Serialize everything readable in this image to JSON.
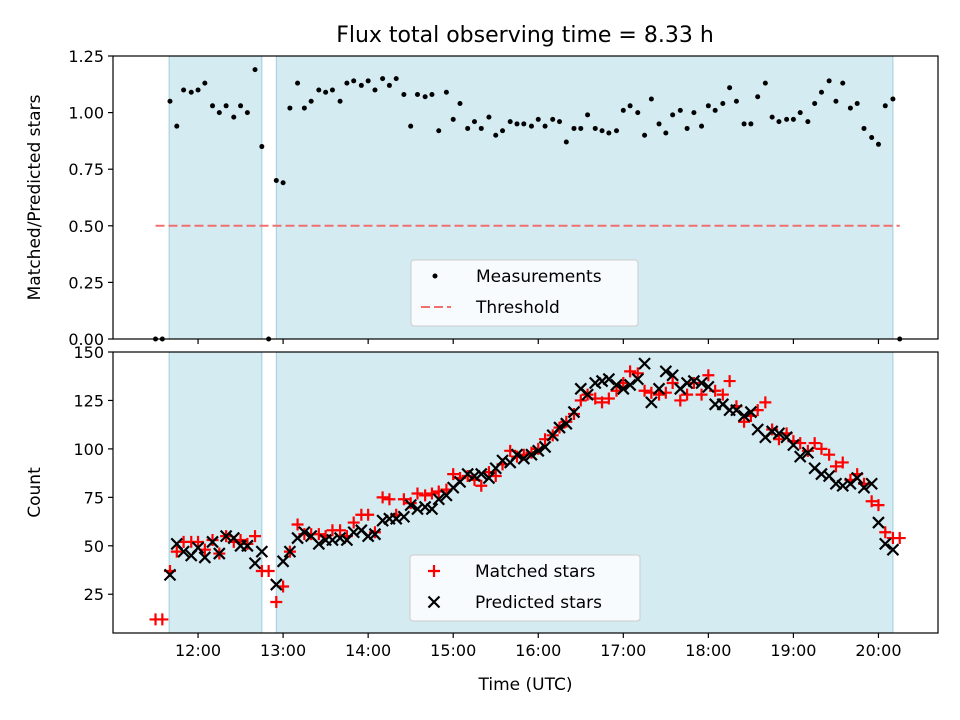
{
  "colors": {
    "observing_band": "#add8e6",
    "measurements": "#000000",
    "threshold": "#f07070",
    "matched": "#ff0000",
    "predicted": "#000000"
  },
  "chart_data": [
    {
      "type": "scatter",
      "title": "Flux total observing time = 8.33 h",
      "xlabel": "",
      "ylabel": "Matched/Predicted stars",
      "x_unit": "hours UTC",
      "xlim": [
        11.0,
        20.7
      ],
      "ylim": [
        0.0,
        1.25
      ],
      "x_ticks": [
        12,
        13,
        14,
        15,
        16,
        17,
        18,
        19,
        20
      ],
      "x_tick_labels": [],
      "y_ticks": [
        0.0,
        0.25,
        0.5,
        0.75,
        1.0,
        1.25
      ],
      "y_tick_labels": [
        "0.00",
        "0.25",
        "0.50",
        "0.75",
        "1.00",
        "1.25"
      ],
      "shaded_intervals": [
        [
          11.66,
          12.75
        ],
        [
          12.92,
          20.17
        ]
      ],
      "legend": {
        "position": "lower center",
        "entries": [
          "Measurements",
          "Threshold"
        ]
      },
      "threshold": {
        "name": "Threshold",
        "value": 0.5,
        "x_range": [
          11.5,
          20.25
        ]
      },
      "series": [
        {
          "name": "Measurements",
          "x": [
            11.5,
            11.58,
            11.67,
            11.75,
            11.83,
            11.92,
            12.0,
            12.08,
            12.17,
            12.25,
            12.33,
            12.42,
            12.5,
            12.58,
            12.67,
            12.75,
            12.83,
            12.92,
            13.0,
            13.08,
            13.17,
            13.25,
            13.33,
            13.42,
            13.5,
            13.58,
            13.67,
            13.75,
            13.83,
            13.92,
            14.0,
            14.08,
            14.17,
            14.25,
            14.33,
            14.42,
            14.5,
            14.58,
            14.67,
            14.75,
            14.83,
            14.92,
            15.0,
            15.08,
            15.17,
            15.25,
            15.33,
            15.42,
            15.5,
            15.58,
            15.67,
            15.75,
            15.83,
            15.92,
            16.0,
            16.08,
            16.17,
            16.25,
            16.33,
            16.42,
            16.5,
            16.58,
            16.67,
            16.75,
            16.83,
            16.92,
            17.0,
            17.08,
            17.17,
            17.25,
            17.33,
            17.42,
            17.5,
            17.58,
            17.67,
            17.75,
            17.83,
            17.92,
            18.0,
            18.08,
            18.17,
            18.25,
            18.33,
            18.42,
            18.5,
            18.58,
            18.67,
            18.75,
            18.83,
            18.92,
            19.0,
            19.08,
            19.17,
            19.25,
            19.33,
            19.42,
            19.5,
            19.58,
            19.67,
            19.75,
            19.83,
            19.92,
            20.0,
            20.08,
            20.17,
            20.25
          ],
          "values": [
            0.0,
            0.0,
            1.05,
            0.94,
            1.1,
            1.09,
            1.1,
            1.13,
            1.03,
            1.0,
            1.03,
            0.98,
            1.03,
            1.0,
            1.19,
            0.85,
            0.0,
            0.7,
            0.69,
            1.02,
            1.13,
            1.02,
            1.05,
            1.1,
            1.09,
            1.1,
            1.05,
            1.13,
            1.14,
            1.12,
            1.14,
            1.1,
            1.15,
            1.12,
            1.15,
            1.08,
            0.94,
            1.08,
            1.07,
            1.08,
            0.92,
            1.09,
            0.97,
            1.04,
            0.93,
            0.96,
            0.93,
            0.98,
            0.9,
            0.92,
            0.96,
            0.95,
            0.95,
            0.94,
            0.97,
            0.94,
            0.97,
            0.96,
            0.87,
            0.93,
            0.93,
            0.99,
            0.93,
            0.92,
            0.91,
            0.92,
            1.01,
            1.03,
            1.0,
            0.9,
            1.06,
            0.95,
            0.91,
            0.99,
            1.01,
            0.93,
            1.0,
            0.94,
            1.03,
            1.01,
            1.04,
            1.11,
            1.05,
            0.95,
            0.95,
            1.07,
            1.13,
            0.98,
            0.96,
            0.97,
            0.97,
            1.0,
            0.96,
            1.04,
            1.09,
            1.14,
            1.05,
            1.13,
            1.02,
            1.04,
            0.93,
            0.89,
            0.86,
            1.03,
            1.06,
            0.0
          ]
        }
      ]
    },
    {
      "type": "scatter",
      "title": "",
      "xlabel": "Time (UTC)",
      "ylabel": "Count",
      "x_unit": "hours UTC",
      "xlim": [
        11.0,
        20.7
      ],
      "ylim": [
        5,
        150
      ],
      "x_ticks": [
        12,
        13,
        14,
        15,
        16,
        17,
        18,
        19,
        20
      ],
      "x_tick_labels": [
        "12:00",
        "13:00",
        "14:00",
        "15:00",
        "16:00",
        "17:00",
        "18:00",
        "19:00",
        "20:00"
      ],
      "y_ticks": [
        25,
        50,
        75,
        100,
        125,
        150
      ],
      "y_tick_labels": [
        "25",
        "50",
        "75",
        "100",
        "125",
        "150"
      ],
      "shaded_intervals": [
        [
          11.66,
          12.75
        ],
        [
          12.92,
          20.17
        ]
      ],
      "legend": {
        "position": "lower center",
        "entries": [
          "Matched stars",
          "Predicted stars"
        ]
      },
      "series": [
        {
          "name": "Matched stars",
          "marker": "plus",
          "x": [
            11.5,
            11.58,
            11.67,
            11.75,
            11.83,
            11.92,
            12.0,
            12.08,
            12.17,
            12.25,
            12.33,
            12.42,
            12.5,
            12.58,
            12.67,
            12.75,
            12.83,
            12.92,
            13.0,
            13.08,
            13.17,
            13.25,
            13.33,
            13.42,
            13.5,
            13.58,
            13.67,
            13.75,
            13.83,
            13.92,
            14.0,
            14.08,
            14.17,
            14.25,
            14.33,
            14.42,
            14.5,
            14.58,
            14.67,
            14.75,
            14.83,
            14.92,
            15.0,
            15.08,
            15.17,
            15.25,
            15.33,
            15.42,
            15.5,
            15.58,
            15.67,
            15.75,
            15.83,
            15.92,
            16.0,
            16.08,
            16.17,
            16.25,
            16.33,
            16.42,
            16.5,
            16.58,
            16.67,
            16.75,
            16.83,
            16.92,
            17.0,
            17.08,
            17.17,
            17.25,
            17.33,
            17.42,
            17.5,
            17.58,
            17.67,
            17.75,
            17.83,
            17.92,
            18.0,
            18.08,
            18.17,
            18.25,
            18.33,
            18.42,
            18.5,
            18.58,
            18.67,
            18.75,
            18.83,
            18.92,
            19.0,
            19.08,
            19.17,
            19.25,
            19.33,
            19.42,
            19.5,
            19.58,
            19.67,
            19.75,
            19.83,
            19.92,
            20.0,
            20.08,
            20.17,
            20.25
          ],
          "values": [
            12,
            12,
            37,
            47,
            52,
            52,
            52,
            48,
            53,
            46,
            55,
            52,
            53,
            51,
            55,
            37,
            37,
            21,
            29,
            47,
            61,
            56,
            56,
            56,
            55,
            58,
            58,
            55,
            62,
            66,
            66,
            57,
            75,
            74,
            66,
            74,
            72,
            77,
            76,
            77,
            78,
            79,
            87,
            85,
            86,
            84,
            81,
            88,
            86,
            92,
            99,
            96,
            97,
            98,
            100,
            105,
            107,
            111,
            114,
            118,
            125,
            128,
            126,
            124,
            126,
            130,
            134,
            140,
            139,
            130,
            129,
            128,
            129,
            134,
            125,
            128,
            134,
            128,
            138,
            130,
            128,
            135,
            122,
            114,
            117,
            120,
            124,
            110,
            105,
            108,
            104,
            103,
            99,
            103,
            100,
            97,
            91,
            93,
            84,
            87,
            82,
            73,
            71,
            57,
            54,
            54
          ]
        },
        {
          "name": "Predicted stars",
          "marker": "x",
          "x": [
            11.67,
            11.75,
            11.83,
            11.92,
            12.0,
            12.08,
            12.17,
            12.25,
            12.33,
            12.42,
            12.5,
            12.58,
            12.67,
            12.75,
            12.92,
            13.0,
            13.08,
            13.17,
            13.25,
            13.33,
            13.42,
            13.5,
            13.58,
            13.67,
            13.75,
            13.83,
            13.92,
            14.0,
            14.08,
            14.17,
            14.25,
            14.33,
            14.42,
            14.5,
            14.58,
            14.67,
            14.75,
            14.83,
            14.92,
            15.0,
            15.08,
            15.17,
            15.25,
            15.33,
            15.42,
            15.5,
            15.58,
            15.67,
            15.75,
            15.83,
            15.92,
            16.0,
            16.08,
            16.17,
            16.25,
            16.33,
            16.42,
            16.5,
            16.58,
            16.67,
            16.75,
            16.83,
            16.92,
            17.0,
            17.08,
            17.17,
            17.25,
            17.33,
            17.42,
            17.5,
            17.58,
            17.67,
            17.75,
            17.83,
            17.92,
            18.0,
            18.08,
            18.17,
            18.25,
            18.33,
            18.42,
            18.5,
            18.58,
            18.67,
            18.75,
            18.83,
            18.92,
            19.0,
            19.08,
            19.17,
            19.25,
            19.33,
            19.42,
            19.5,
            19.58,
            19.67,
            19.75,
            19.83,
            19.92,
            20.0,
            20.08,
            20.17
          ],
          "values": [
            35,
            51,
            47,
            45,
            49,
            44,
            52,
            46,
            55,
            54,
            50,
            50,
            41,
            47,
            30,
            42,
            47,
            54,
            57,
            55,
            51,
            53,
            53,
            54,
            53,
            57,
            58,
            55,
            56,
            63,
            64,
            64,
            65,
            71,
            69,
            70,
            69,
            74,
            76,
            80,
            83,
            87,
            86,
            87,
            85,
            90,
            94,
            93,
            97,
            95,
            97,
            99,
            101,
            107,
            111,
            113,
            119,
            131,
            128,
            134,
            135,
            136,
            133,
            131,
            133,
            136,
            144,
            124,
            131,
            140,
            138,
            131,
            134,
            135,
            134,
            132,
            123,
            123,
            120,
            120,
            117,
            119,
            110,
            106,
            109,
            108,
            106,
            102,
            96,
            98,
            90,
            87,
            86,
            82,
            81,
            82,
            85,
            80,
            82,
            62,
            51,
            48
          ]
        }
      ]
    }
  ]
}
